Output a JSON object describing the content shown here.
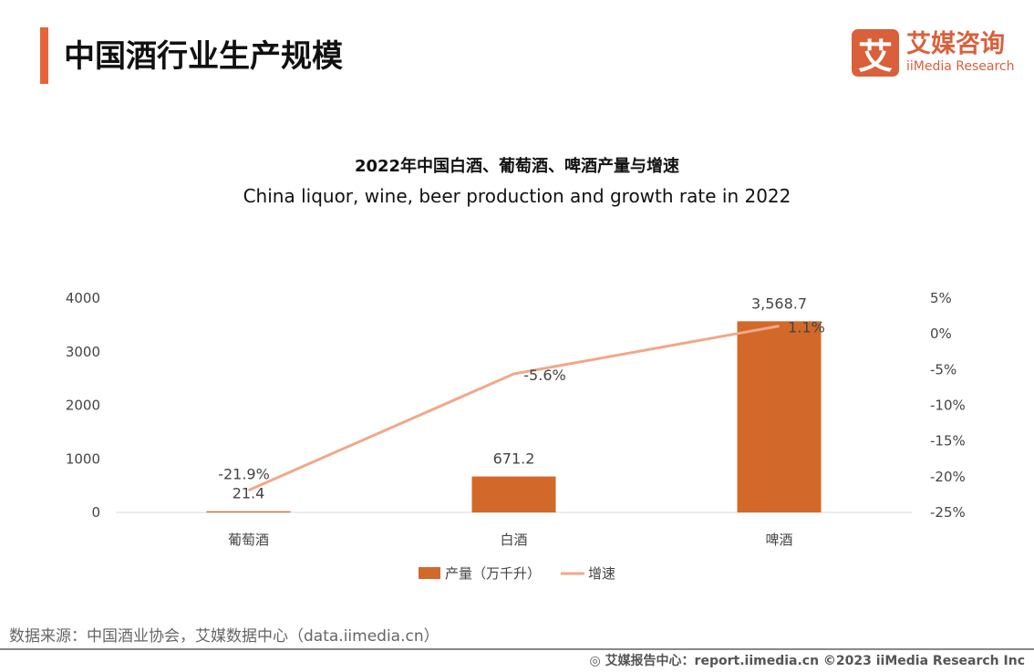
{
  "header": {
    "title": "中国酒行业生产规模"
  },
  "logo": {
    "mark": "艾",
    "cn": "艾媒咨询",
    "en": "iiMedia Research"
  },
  "chart_data": {
    "type": "bar+line",
    "title": "2022年中国白酒、葡萄酒、啤酒产量与增速",
    "subtitle": "China liquor, wine, beer production and growth rate in 2022",
    "categories": [
      "葡萄酒",
      "白酒",
      "啤酒"
    ],
    "series": [
      {
        "name": "产量（万千升）",
        "type": "bar",
        "axis": "left",
        "values": [
          21.4,
          671.2,
          3568.7
        ],
        "labels": [
          "21.4",
          "671.2",
          "3,568.7"
        ],
        "color": "#d2692a"
      },
      {
        "name": "增速",
        "type": "line",
        "axis": "right",
        "values": [
          -21.9,
          -5.6,
          1.1
        ],
        "labels": [
          "-21.9%",
          "-5.6%",
          "1.1%"
        ],
        "color": "#f0a88a"
      }
    ],
    "left_axis": {
      "ylim": [
        0,
        4000
      ],
      "ticks": [
        "0",
        "1000",
        "2000",
        "3000",
        "4000"
      ]
    },
    "right_axis": {
      "ylim": [
        -25,
        5
      ],
      "ticks": [
        "-25%",
        "-20%",
        "-15%",
        "-10%",
        "-5%",
        "0%",
        "5%"
      ]
    },
    "legend": "bottom",
    "grid": false
  },
  "footer": {
    "source": "数据来源：中国酒业协会，艾媒数据中心（data.iimedia.cn）",
    "credit": "艾媒报告中心：report.iimedia.cn   ©2023  iiMedia Research  Inc"
  }
}
